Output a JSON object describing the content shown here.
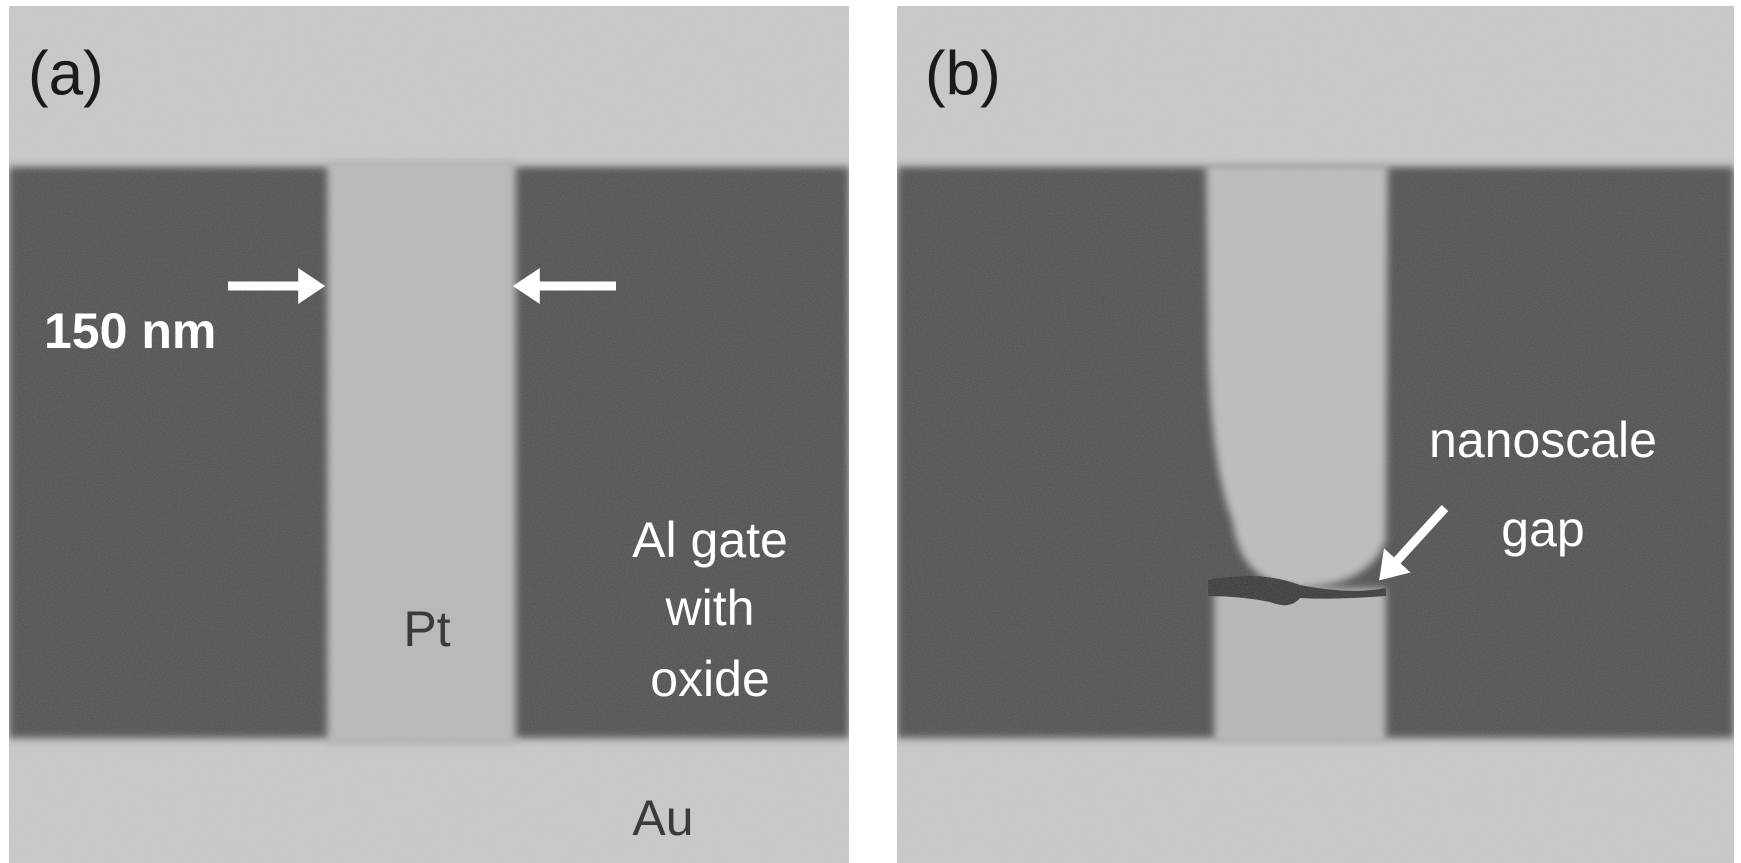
{
  "panels": [
    {
      "label": "(a)",
      "scale_label": "150 nm",
      "wire_label": "Pt",
      "gate_label": [
        "Al gate",
        "with",
        "oxide"
      ],
      "electrode_label": "Au"
    },
    {
      "label": "(b)",
      "gap_label": [
        "nanoscale",
        "gap"
      ]
    }
  ]
}
